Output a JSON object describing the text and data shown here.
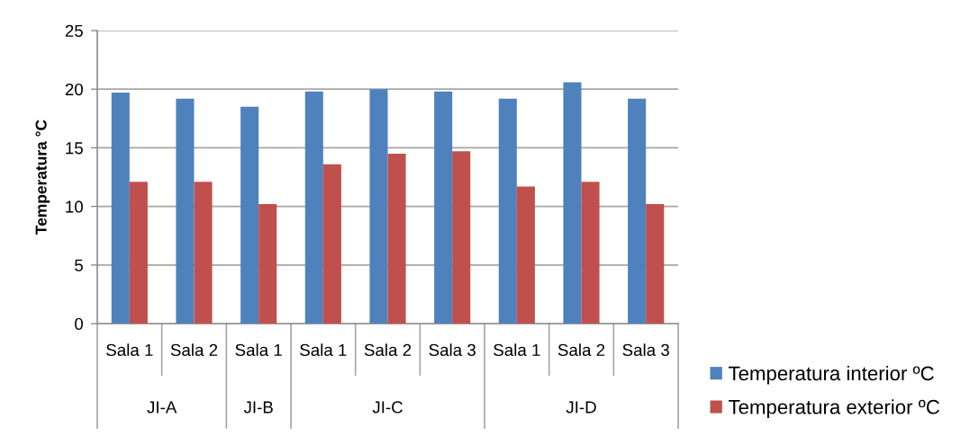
{
  "chart_data": {
    "type": "bar",
    "ylabel": "Temperatura °C",
    "categories": [
      "Sala 1",
      "Sala 2",
      "Sala 1",
      "Sala 1",
      "Sala 2",
      "Sala 3",
      "Sala 1",
      "Sala 2",
      "Sala 3"
    ],
    "annotations": [
      "JI-A",
      "JI-B",
      "JI-C",
      "JI-D"
    ],
    "series": [
      {
        "name": "Temperatura interior ºC",
        "color": "#4f81bd",
        "values": [
          19.7,
          19.2,
          18.5,
          19.8,
          20.0,
          19.8,
          19.2,
          20.6,
          19.2
        ]
      },
      {
        "name": "Temperatura exterior ºC",
        "color": "#c0504d",
        "values": [
          12.1,
          12.1,
          10.2,
          13.6,
          14.5,
          14.7,
          11.7,
          12.1,
          10.2
        ]
      }
    ],
    "ylim": [
      0,
      25
    ],
    "yticks": [
      0,
      5,
      10,
      15,
      20,
      25
    ],
    "grid": "y",
    "legend": "bottom right"
  }
}
